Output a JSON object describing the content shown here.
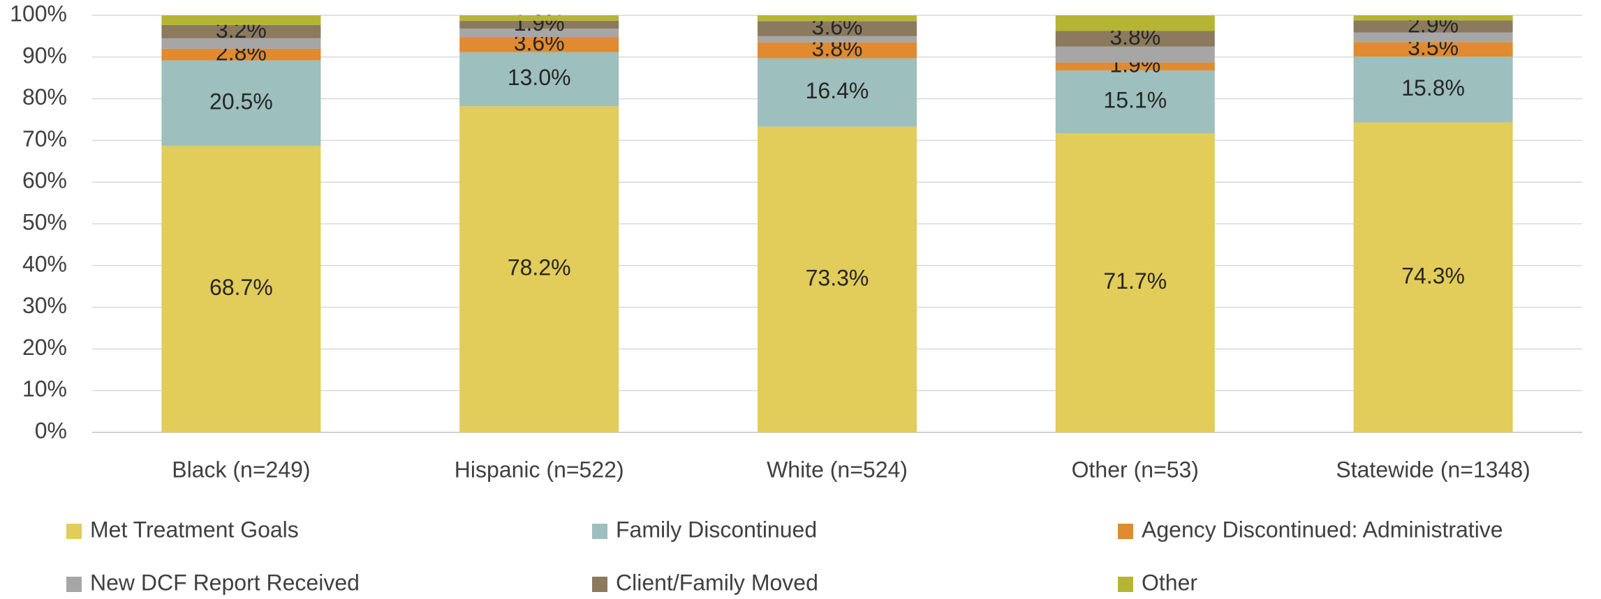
{
  "chart_data": {
    "type": "stacked_bar",
    "categories": [
      "Black (n=249)",
      "Hispanic (n=522)",
      "White (n=524)",
      "Other (n=53)",
      "Statewide (n=1348)"
    ],
    "series": [
      {
        "name": "Met Treatment Goals",
        "color": "#e2cc5a",
        "values": [
          68.7,
          78.2,
          73.3,
          71.7,
          74.3
        ],
        "value_labels": [
          "68.7%",
          "78.2%",
          "73.3%",
          "71.7%",
          "74.3%"
        ]
      },
      {
        "name": "Family Discontinued",
        "color": "#9dbfbd",
        "values": [
          20.5,
          13.0,
          16.4,
          15.1,
          15.8
        ],
        "value_labels": [
          "20.5%",
          "13.0%",
          "16.4%",
          "15.1%",
          "15.8%"
        ]
      },
      {
        "name": "Agency Discontinued: Administrative",
        "color": "#e08a32",
        "values": [
          2.8,
          3.6,
          3.8,
          1.9,
          3.5
        ],
        "value_labels": [
          "2.8%",
          "3.6%",
          "3.8%",
          "1.9%",
          "3.5%"
        ]
      },
      {
        "name": "New DCF Report Received",
        "color": "#a6a6a6",
        "values": [
          2.5,
          2.0,
          1.5,
          3.8,
          2.3
        ],
        "value_labels": [
          null,
          null,
          null,
          null,
          null
        ]
      },
      {
        "name": "Client/Family Moved",
        "color": "#8b7a5e",
        "values": [
          3.2,
          1.9,
          3.6,
          3.8,
          2.9
        ],
        "value_labels": [
          "3.2%",
          "1.9%",
          "3.6%",
          "3.8%",
          "2.9%"
        ]
      },
      {
        "name": "Other",
        "color": "#b5b533",
        "values": [
          2.3,
          1.3,
          1.4,
          3.7,
          1.2
        ],
        "value_labels": [
          null,
          null,
          null,
          null,
          null
        ]
      }
    ],
    "ylim": [
      0,
      100
    ],
    "yticks": [
      {
        "value": 0,
        "label": "0%"
      },
      {
        "value": 10,
        "label": "10%"
      },
      {
        "value": 20,
        "label": "20%"
      },
      {
        "value": 30,
        "label": "30%"
      },
      {
        "value": 40,
        "label": "40%"
      },
      {
        "value": 50,
        "label": "50%"
      },
      {
        "value": 60,
        "label": "60%"
      },
      {
        "value": 70,
        "label": "70%"
      },
      {
        "value": 80,
        "label": "80%"
      },
      {
        "value": 90,
        "label": "90%"
      },
      {
        "value": 100,
        "label": "100%"
      }
    ],
    "grid": true,
    "legend": "bottom"
  }
}
